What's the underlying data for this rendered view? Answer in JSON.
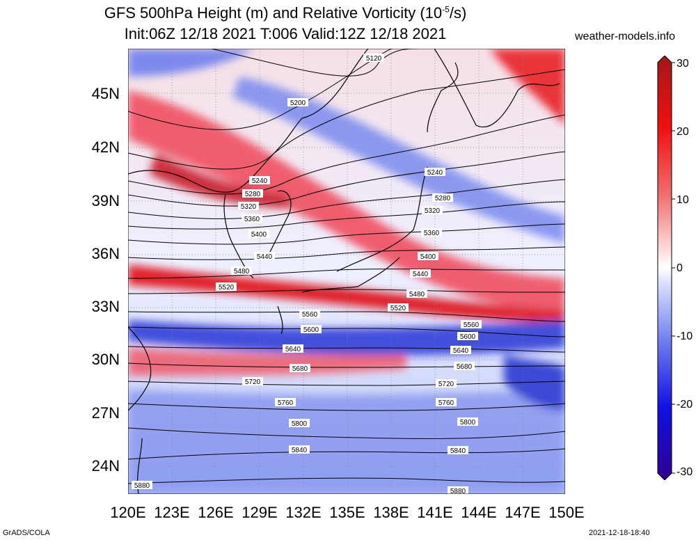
{
  "title": {
    "line1_prefix": "GFS 500hPa Height (m) and Relative Vorticity (10",
    "line1_sup": "-5",
    "line1_suffix": "/s)",
    "line2": "Init:06Z 12/18 2021 T:006 Valid:12Z 12/18 2021"
  },
  "site": "weather-models.info",
  "footer": {
    "left": "GrADS/COLA",
    "right": "2021-12-18-18:40"
  },
  "lat_labels": [
    "45N",
    "42N",
    "39N",
    "36N",
    "33N",
    "30N",
    "27N",
    "24N"
  ],
  "lon_labels": [
    "120E",
    "123E",
    "126E",
    "129E",
    "132E",
    "135E",
    "138E",
    "141E",
    "144E",
    "147E",
    "150E"
  ],
  "colorbar": {
    "ticks": [
      "30",
      "20",
      "10",
      "0",
      "-10",
      "-20",
      "-30"
    ],
    "colors": {
      "high": "#a80000",
      "mid_high": "#ff3030",
      "light_high": "#ffc8c8",
      "zero": "#ffffff",
      "light_low": "#c8d0ff",
      "mid_low": "#3030ff",
      "low": "#200090"
    }
  },
  "contour_labels": [
    "5120",
    "5200",
    "5240",
    "5280",
    "5320",
    "5360",
    "5400",
    "5440",
    "5480",
    "5520",
    "5560",
    "5600",
    "5640",
    "5680",
    "5720",
    "5760",
    "5800",
    "5840",
    "5880",
    "5240",
    "5280",
    "5320",
    "5360",
    "5400",
    "5440",
    "5480",
    "5520",
    "5560",
    "5600",
    "5640",
    "5680",
    "5720",
    "5760",
    "5800",
    "5840",
    "5880"
  ]
}
